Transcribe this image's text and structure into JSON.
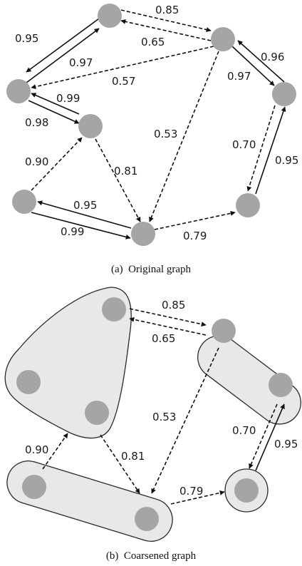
{
  "colors": {
    "node_fill": "#a7a4a4",
    "group_fill": "#e8e8e8",
    "group_stroke": "#2b2b2b",
    "edge": "#111111",
    "background": "#ffffff"
  },
  "panel_a": {
    "caption": "(a)  Original graph",
    "edges": [
      {
        "from": "A",
        "to": "B",
        "weight": "0.85",
        "style": "dashed"
      },
      {
        "from": "B",
        "to": "A",
        "weight": "0.65",
        "style": "dashed"
      },
      {
        "from": "A",
        "to": "C",
        "weight": "0.95",
        "style": "solid"
      },
      {
        "from": "C",
        "to": "A",
        "weight": "0.97",
        "style": "solid"
      },
      {
        "from": "B",
        "to": "C",
        "weight": "0.57",
        "style": "dashed"
      },
      {
        "from": "C",
        "to": "D",
        "weight": "0.98",
        "style": "solid"
      },
      {
        "from": "D",
        "to": "C",
        "weight": "0.99",
        "style": "solid"
      },
      {
        "from": "B",
        "to": "E",
        "weight": "0.97",
        "style": "solid"
      },
      {
        "from": "E",
        "to": "B",
        "weight": "0.96",
        "style": "solid"
      },
      {
        "from": "B",
        "to": "G",
        "weight": "0.53",
        "style": "dashed"
      },
      {
        "from": "F",
        "to": "D",
        "weight": "0.90",
        "style": "dashed"
      },
      {
        "from": "D",
        "to": "G",
        "weight": "0.81",
        "style": "dashed"
      },
      {
        "from": "G",
        "to": "F",
        "weight": "0.95",
        "style": "solid"
      },
      {
        "from": "F",
        "to": "G",
        "weight": "0.99",
        "style": "solid"
      },
      {
        "from": "G",
        "to": "H",
        "weight": "0.79",
        "style": "dashed"
      },
      {
        "from": "E",
        "to": "H",
        "weight": "0.70",
        "style": "dashed"
      },
      {
        "from": "H",
        "to": "E",
        "weight": "0.95",
        "style": "solid"
      }
    ]
  },
  "panel_b": {
    "caption": "(b)  Coarsened graph",
    "edges": [
      {
        "from": "G1",
        "to": "G2",
        "weight": "0.85",
        "style": "dashed"
      },
      {
        "from": "G2",
        "to": "G1",
        "weight": "0.65",
        "style": "dashed"
      },
      {
        "from": "G2",
        "to": "G3",
        "weight": "0.53",
        "style": "dashed"
      },
      {
        "from": "G1",
        "to": "G3",
        "weight": "0.81",
        "style": "dashed"
      },
      {
        "from": "G3",
        "to": "G1",
        "weight": "0.90",
        "style": "dashed"
      },
      {
        "from": "G3",
        "to": "G4",
        "weight": "0.79",
        "style": "dashed"
      },
      {
        "from": "G2",
        "to": "G4",
        "weight": "0.70",
        "style": "dashed"
      },
      {
        "from": "G4",
        "to": "G2",
        "weight": "0.95",
        "style": "solid"
      }
    ]
  }
}
